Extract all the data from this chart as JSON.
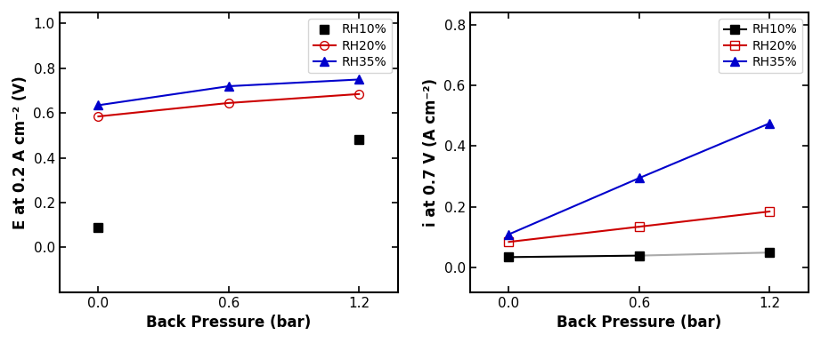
{
  "x": [
    0.0,
    0.6,
    1.2
  ],
  "left": {
    "ylabel": "E at 0.2 A cm⁻² (V)",
    "xlabel": "Back Pressure (bar)",
    "ylim": [
      -0.2,
      1.05
    ],
    "yticks": [
      0.0,
      0.2,
      0.4,
      0.6,
      0.8,
      1.0
    ],
    "xlim": [
      -0.18,
      1.38
    ],
    "xticks": [
      0.0,
      0.6,
      1.2
    ],
    "series": [
      {
        "label": "RH10%",
        "y": [
          0.09,
          null,
          0.48
        ],
        "color": "#000000",
        "marker": "s",
        "marker_face": "#000000",
        "linestyle": "none"
      },
      {
        "label": "RH20%",
        "y": [
          0.585,
          0.645,
          0.685
        ],
        "color": "#cc0000",
        "marker": "o",
        "marker_face": "none",
        "linestyle": "-"
      },
      {
        "label": "RH35%",
        "y": [
          0.635,
          0.72,
          0.75
        ],
        "color": "#0000cc",
        "marker": "^",
        "marker_face": "#0000cc",
        "linestyle": "-"
      }
    ]
  },
  "right": {
    "ylabel": "i at 0.7 V (A cm⁻²)",
    "xlabel": "Back Pressure (bar)",
    "ylim": [
      -0.08,
      0.84
    ],
    "yticks": [
      0.0,
      0.2,
      0.4,
      0.6,
      0.8
    ],
    "xlim": [
      -0.18,
      1.38
    ],
    "xticks": [
      0.0,
      0.6,
      1.2
    ],
    "series": [
      {
        "label": "RH10%",
        "y": [
          0.035,
          0.04,
          0.05
        ],
        "color": "#000000",
        "marker": "s",
        "marker_face": "#000000",
        "linestyle": "-",
        "segment_colors": [
          "#000000",
          "#aaaaaa"
        ]
      },
      {
        "label": "RH20%",
        "y": [
          0.085,
          0.135,
          0.185
        ],
        "color": "#cc0000",
        "marker": "s",
        "marker_face": "none",
        "linestyle": "-",
        "segment_colors": [
          "#cc0000",
          "#cc0000"
        ]
      },
      {
        "label": "RH35%",
        "y": [
          0.11,
          0.295,
          0.475
        ],
        "color": "#0000cc",
        "marker": "^",
        "marker_face": "#0000cc",
        "linestyle": "-",
        "segment_colors": [
          "#0000cc",
          "#0000cc"
        ]
      }
    ]
  },
  "legend_fontsize": 10,
  "axis_label_fontsize": 12,
  "tick_fontsize": 11,
  "marker_size": 7,
  "linewidth": 1.5
}
